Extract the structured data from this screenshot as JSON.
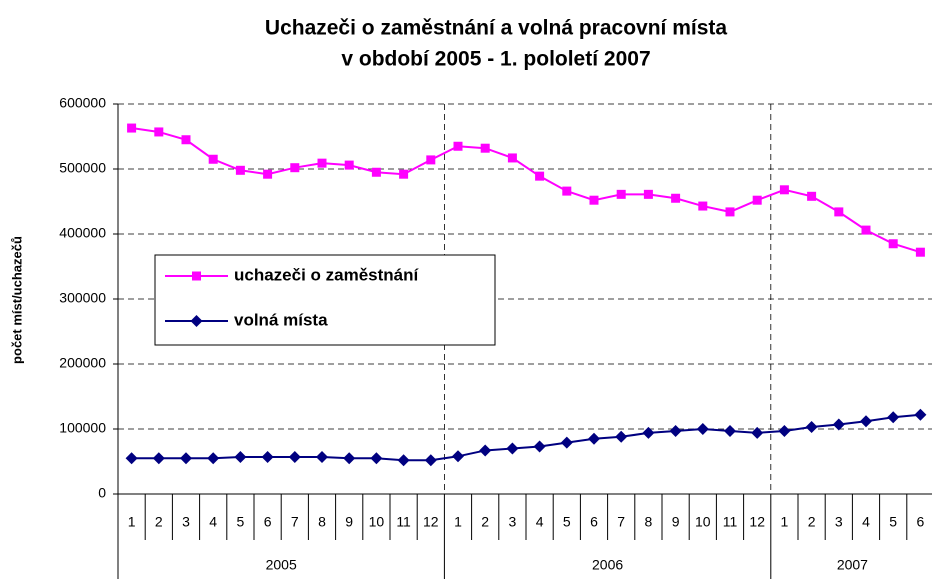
{
  "chart_data": {
    "type": "line",
    "title": [
      "Uchazeči o zaměstnání a volná pracovní místa",
      "v období 2005 - 1. pololetí 2007"
    ],
    "y_label": "počet míst/uchazečů",
    "categories": [
      "1",
      "2",
      "3",
      "4",
      "5",
      "6",
      "7",
      "8",
      "9",
      "10",
      "11",
      "12",
      "1",
      "2",
      "3",
      "4",
      "5",
      "6",
      "7",
      "8",
      "9",
      "10",
      "11",
      "12",
      "1",
      "2",
      "3",
      "4",
      "5",
      "6"
    ],
    "x_groups": [
      "2005",
      "2006",
      "2007"
    ],
    "series": [
      {
        "name": "uchazeči o zaměstnání",
        "color": "#ff00ff",
        "marker": "square",
        "values": [
          563000,
          557000,
          545000,
          515000,
          498000,
          492000,
          502000,
          509000,
          506000,
          495000,
          492000,
          514000,
          535000,
          532000,
          517000,
          489000,
          466000,
          452000,
          461000,
          461000,
          455000,
          443000,
          434000,
          452000,
          468000,
          458000,
          434000,
          406000,
          385000,
          372000
        ]
      },
      {
        "name": "volná místa",
        "color": "#000080",
        "marker": "diamond",
        "values": [
          55000,
          55000,
          55000,
          55000,
          57000,
          57000,
          57000,
          57000,
          55000,
          55000,
          52000,
          52000,
          58000,
          67000,
          70000,
          73000,
          79000,
          85000,
          88000,
          94000,
          97000,
          100000,
          97000,
          94000,
          97000,
          103000,
          107000,
          112000,
          118000,
          122000
        ]
      }
    ],
    "ylim": [
      0,
      600000
    ],
    "yticks": [
      0,
      100000,
      200000,
      300000,
      400000,
      500000,
      600000
    ],
    "grid": true
  }
}
